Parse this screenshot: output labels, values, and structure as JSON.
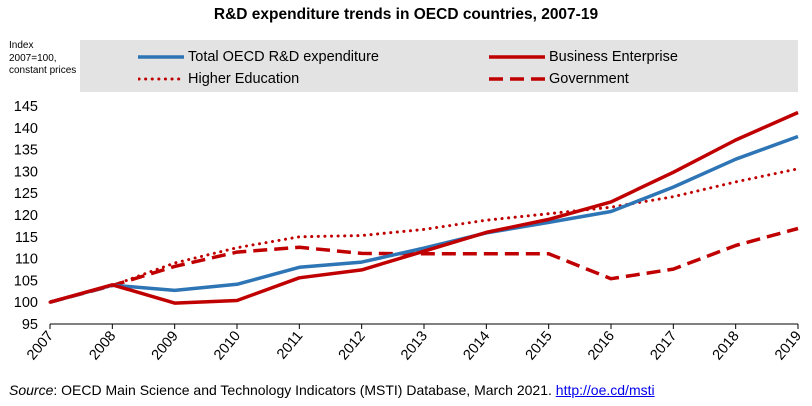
{
  "chart_data": {
    "type": "line",
    "title": "R&D expenditure trends in OECD countries, 2007-19",
    "ylabel": "Index 2007=100, constant prices",
    "xlabel": "",
    "ylim": [
      95,
      145
    ],
    "yticks": [
      95,
      100,
      105,
      110,
      115,
      120,
      125,
      130,
      135,
      140,
      145
    ],
    "x": [
      "2007",
      "2008",
      "2009",
      "2010",
      "2011",
      "2012",
      "2013",
      "2014",
      "2015",
      "2016",
      "2017",
      "2018",
      "2019"
    ],
    "legend_position": "top",
    "series": [
      {
        "name": "Total OECD R&D expenditure",
        "color": "#2e75b6",
        "style": "solid",
        "values": [
          100,
          103.9,
          102.7,
          104.1,
          108.0,
          109.2,
          112.4,
          115.9,
          118.3,
          120.8,
          126.4,
          132.8,
          138.0
        ]
      },
      {
        "name": "Business Enterprise",
        "color": "#c00000",
        "style": "solid",
        "values": [
          100,
          104.0,
          99.8,
          100.4,
          105.6,
          107.4,
          111.7,
          116.0,
          119.0,
          123.0,
          129.8,
          137.2,
          143.5
        ]
      },
      {
        "name": "Higher Education",
        "color": "#c00000",
        "style": "dotted",
        "values": [
          100,
          103.8,
          109.0,
          112.5,
          115.0,
          115.3,
          116.7,
          118.8,
          120.3,
          121.8,
          124.2,
          127.6,
          130.6
        ]
      },
      {
        "name": "Government",
        "color": "#c00000",
        "style": "dashed",
        "values": [
          100,
          103.8,
          108.2,
          111.5,
          112.6,
          111.2,
          111.1,
          111.1,
          111.1,
          105.4,
          107.6,
          113.0,
          116.9
        ]
      }
    ]
  },
  "source": {
    "prefix": "Source",
    "text": ": OECD Main Science and Technology Indicators (MSTI) Database, March 2021. ",
    "link": "http://oe.cd/msti"
  }
}
